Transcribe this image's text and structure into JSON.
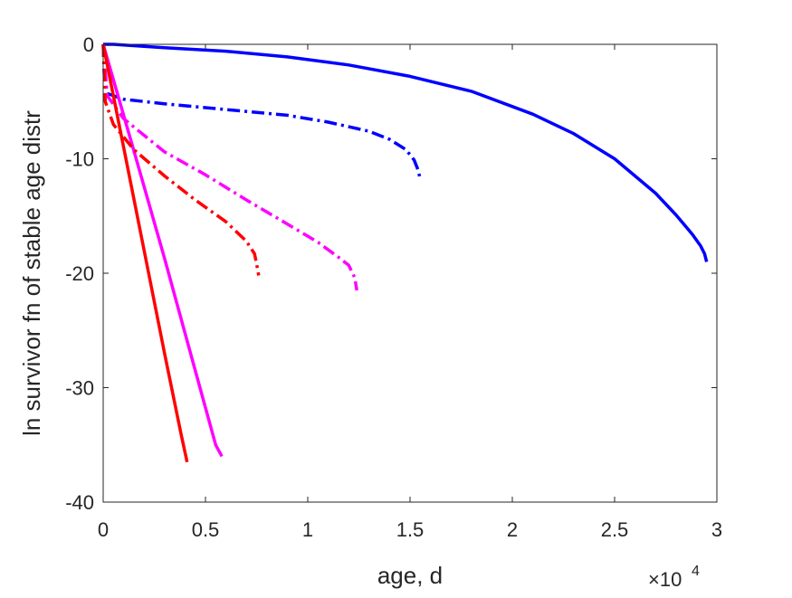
{
  "chart_data": {
    "type": "line",
    "title": "",
    "xlabel": "age, d",
    "ylabel": "ln survivor fn of stable age distr",
    "x_multiplier_label": "×10",
    "x_multiplier_exp": "4",
    "xlim": [
      0,
      3
    ],
    "ylim": [
      -40,
      0
    ],
    "x_ticks": [
      0,
      0.5,
      1,
      1.5,
      2,
      2.5,
      3
    ],
    "x_tick_labels": [
      "0",
      "0.5",
      "1",
      "1.5",
      "2",
      "2.5",
      "3"
    ],
    "y_ticks": [
      0,
      -10,
      -20,
      -30,
      -40
    ],
    "y_tick_labels": [
      "0",
      "-10",
      "-20",
      "-30",
      "-40"
    ],
    "grid": false,
    "series": [
      {
        "color": "#0000ff",
        "style": "solid",
        "x": [
          0,
          0.05,
          0.3,
          0.6,
          0.9,
          1.2,
          1.5,
          1.8,
          2.1,
          2.3,
          2.5,
          2.7,
          2.8,
          2.88,
          2.92,
          2.94,
          2.95
        ],
        "y": [
          0,
          0,
          -0.3,
          -0.6,
          -1.1,
          -1.8,
          -2.8,
          -4.1,
          -6.1,
          -7.8,
          -10.0,
          -13.0,
          -14.9,
          -16.6,
          -17.6,
          -18.3,
          -19.0
        ]
      },
      {
        "color": "#0000ff",
        "style": "dashdot",
        "x": [
          0,
          0.005,
          0.02,
          0.1,
          0.3,
          0.6,
          0.9,
          1.1,
          1.3,
          1.4,
          1.48,
          1.52,
          1.54,
          1.55
        ],
        "y": [
          0,
          -2.5,
          -4.3,
          -4.8,
          -5.2,
          -5.7,
          -6.2,
          -6.8,
          -7.6,
          -8.3,
          -9.2,
          -10.1,
          -11.0,
          -11.8
        ]
      },
      {
        "color": "#ff00ff",
        "style": "solid",
        "x": [
          0,
          0.15,
          0.3,
          0.45,
          0.55,
          0.58
        ],
        "y": [
          0,
          -9.3,
          -18.7,
          -28.5,
          -35.0,
          -36.0
        ]
      },
      {
        "color": "#ff00ff",
        "style": "dashdot",
        "x": [
          0,
          0.02,
          0.1,
          0.3,
          0.5,
          0.7,
          0.9,
          1.05,
          1.15,
          1.2,
          1.23,
          1.24
        ],
        "y": [
          0,
          -4.5,
          -6.5,
          -9.4,
          -11.4,
          -13.6,
          -15.7,
          -17.3,
          -18.6,
          -19.3,
          -20.4,
          -21.5
        ]
      },
      {
        "color": "#ff0000",
        "style": "solid",
        "x": [
          0,
          0.1,
          0.2,
          0.3,
          0.38,
          0.41
        ],
        "y": [
          0,
          -9.0,
          -18.0,
          -27.0,
          -34.0,
          -36.5
        ]
      },
      {
        "color": "#ff0000",
        "style": "dashdot",
        "x": [
          0,
          0.01,
          0.05,
          0.15,
          0.3,
          0.45,
          0.6,
          0.7,
          0.74,
          0.75,
          0.76
        ],
        "y": [
          0,
          -5.0,
          -7.0,
          -9.2,
          -11.5,
          -13.6,
          -15.5,
          -17.2,
          -18.3,
          -19.2,
          -20.2
        ]
      }
    ]
  }
}
